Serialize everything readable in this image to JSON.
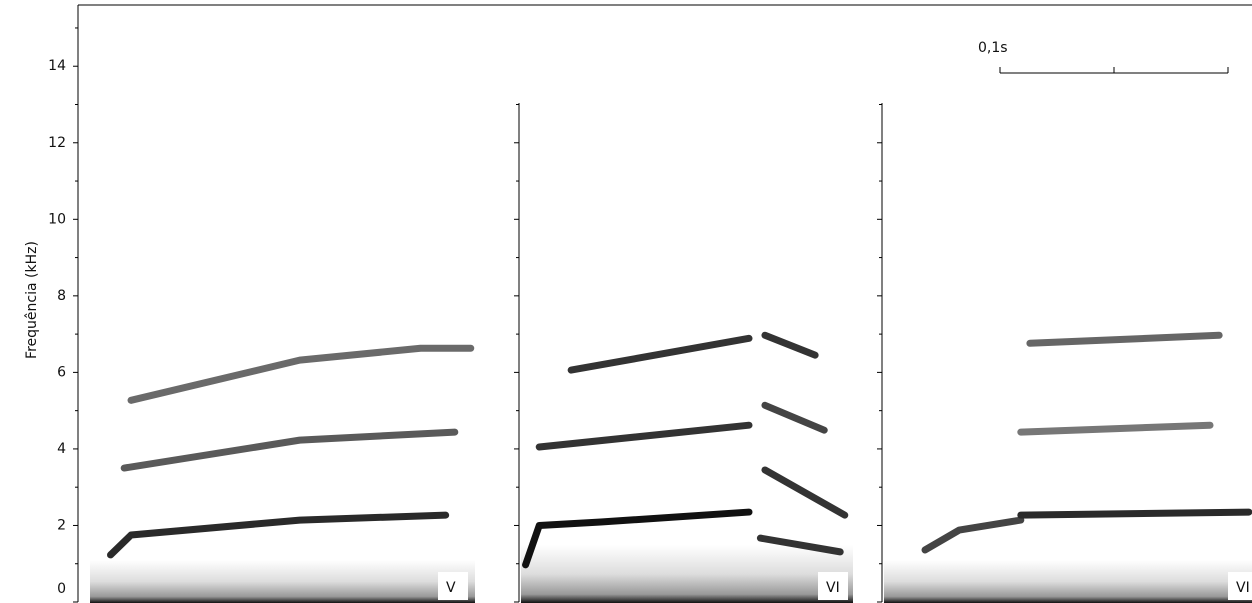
{
  "chart_data": {
    "type": "spectrogram",
    "ylabel": "Frequência (kHz)",
    "ylim": [
      0,
      15.6
    ],
    "yticks": [
      0,
      2,
      4,
      6,
      8,
      10,
      12,
      14
    ],
    "yminorticks": [
      1,
      3,
      5,
      7,
      9,
      11,
      13,
      15
    ],
    "scale_bar": {
      "value": 0.1,
      "label": "0,1s"
    },
    "panels": [
      {
        "label": "V",
        "series": [
          {
            "color": "#2a2a2a",
            "x": [
              0.009,
              0.018,
              0.092,
              0.156
            ],
            "values": [
              1.23,
              1.75,
              2.14,
              2.27
            ]
          },
          {
            "color": "#5a5a5a",
            "x": [
              0.015,
              0.092,
              0.16
            ],
            "values": [
              3.5,
              4.23,
              4.44
            ]
          },
          {
            "color": "#6a6a6a",
            "x": [
              0.018,
              0.092,
              0.145,
              0.167
            ],
            "values": [
              5.27,
              6.32,
              6.63,
              6.63
            ]
          }
        ]
      },
      {
        "label": "VI",
        "series": [
          {
            "color": "#111111",
            "x": [
              0.002,
              0.008,
              0.035,
              0.1
            ],
            "values": [
              0.97,
              2.0,
              2.09,
              2.35
            ]
          },
          {
            "color": "#333333",
            "x": [
              0.008,
              0.1
            ],
            "values": [
              4.05,
              4.62
            ]
          },
          {
            "color": "#333333",
            "x": [
              0.022,
              0.1
            ],
            "values": [
              6.06,
              6.89
            ]
          },
          {
            "color": "#333333",
            "x": [
              0.105,
              0.14
            ],
            "values": [
              1.67,
              1.31
            ]
          },
          {
            "color": "#333333",
            "x": [
              0.107,
              0.142
            ],
            "values": [
              3.45,
              2.27
            ]
          },
          {
            "color": "#444444",
            "x": [
              0.107,
              0.133
            ],
            "values": [
              5.14,
              4.49
            ]
          },
          {
            "color": "#333333",
            "x": [
              0.107,
              0.129
            ],
            "values": [
              6.97,
              6.45
            ]
          }
        ]
      },
      {
        "label": "VI",
        "series": [
          {
            "color": "#444444",
            "x": [
              0.018,
              0.033,
              0.06
            ],
            "values": [
              1.36,
              1.88,
              2.14
            ]
          },
          {
            "color": "#2a2a2a",
            "x": [
              0.06,
              0.16
            ],
            "values": [
              2.27,
              2.35
            ]
          },
          {
            "color": "#777777",
            "x": [
              0.06,
              0.143
            ],
            "values": [
              4.44,
              4.62
            ]
          },
          {
            "color": "#666666",
            "x": [
              0.064,
              0.147
            ],
            "values": [
              6.76,
              6.97
            ]
          }
        ]
      }
    ]
  }
}
